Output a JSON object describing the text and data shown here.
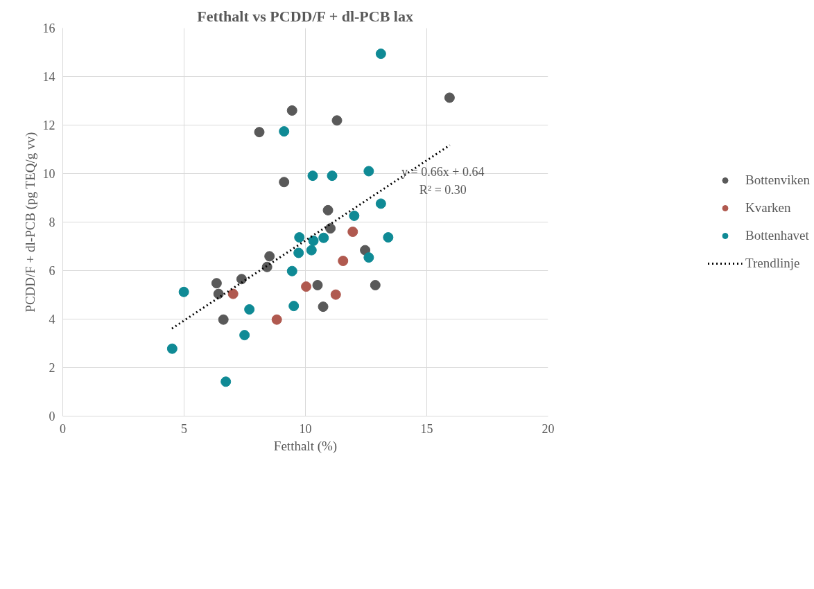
{
  "chart_data": {
    "type": "scatter",
    "title": "Fetthalt vs PCDD/F + dl-PCB lax",
    "xlabel": "Fetthalt (%)",
    "ylabel": "PCDD/F + dl-PCB (pg TEQ/g vv)",
    "xlim": [
      0,
      20
    ],
    "xticks": [
      0,
      5,
      10,
      15,
      20
    ],
    "ylim": [
      0,
      16
    ],
    "yticks": [
      0,
      2,
      4,
      6,
      8,
      10,
      12,
      14,
      16
    ],
    "grid": true,
    "legend": "right",
    "marker": "circle",
    "series": [
      {
        "name": "Bottenviken",
        "color": "#595959",
        "x": [
          6.34,
          6.42,
          6.62,
          7.37,
          8.1,
          8.42,
          8.52,
          9.12,
          9.45,
          10.5,
          10.73,
          10.93,
          11.03,
          11.3,
          12.46,
          12.88,
          15.94
        ],
        "values": [
          5.48,
          5.04,
          3.98,
          5.65,
          11.71,
          6.15,
          6.59,
          9.65,
          12.6,
          5.4,
          4.51,
          8.49,
          7.74,
          12.19,
          6.84,
          5.4,
          13.13
        ]
      },
      {
        "name": "Kvarken",
        "color": "#b0594f",
        "x": [
          7.02,
          8.82,
          10.03,
          11.25,
          11.55,
          11.95
        ],
        "values": [
          5.04,
          3.98,
          5.34,
          5.01,
          6.4,
          7.6
        ]
      },
      {
        "name": "Bottenhavet",
        "color": "#0f8a95",
        "x": [
          4.51,
          4.99,
          6.72,
          7.49,
          7.69,
          9.12,
          9.45,
          9.52,
          9.72,
          9.75,
          10.25,
          10.33,
          10.3,
          10.75,
          11.1,
          12.01,
          12.61,
          12.61,
          13.11,
          13.11,
          13.41
        ],
        "values": [
          2.78,
          5.12,
          1.42,
          3.34,
          4.4,
          11.74,
          5.98,
          4.54,
          6.73,
          7.37,
          6.84,
          7.23,
          9.91,
          7.35,
          9.91,
          8.26,
          10.1,
          6.54,
          8.76,
          14.94,
          7.37
        ]
      },
      {
        "name": "Trendlinje",
        "type": "line",
        "line_style": "dotted",
        "marker": "none",
        "color": "#000000",
        "x": [
          4.5,
          15.95
        ],
        "values": [
          3.61,
          11.17
        ]
      }
    ],
    "annotations": [
      "y = 0.66x + 0.64",
      "R² = 0.30"
    ]
  }
}
